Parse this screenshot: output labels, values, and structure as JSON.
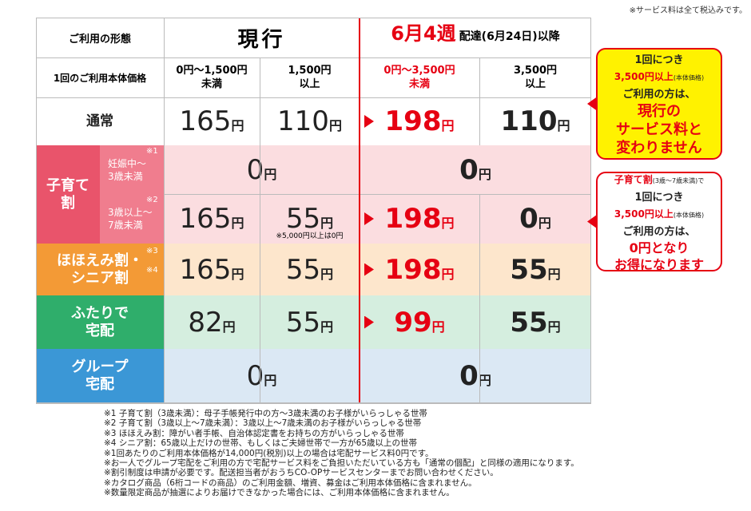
{
  "note": "※サービス料は全て税込みです。",
  "header": {
    "type_label": "ご利用の形態",
    "current": "現行",
    "new_week": "6月4週",
    "new_rest": "配達(6月24日)以降"
  },
  "price_row": {
    "label": "1回のご利用本体価格",
    "cols": [
      [
        "0円～1,500円",
        "未満"
      ],
      [
        "1,500円",
        "以上"
      ],
      [
        "0円～3,500円",
        "未満"
      ],
      [
        "3,500円",
        "以上"
      ]
    ]
  },
  "yen": "円",
  "rows": [
    {
      "label": [
        "通常"
      ],
      "cells": [
        165,
        110,
        198,
        110
      ]
    },
    {
      "label": [
        "子育て",
        "割"
      ],
      "sub": [
        {
          "label": [
            "妊娠中～",
            "3歳未満"
          ],
          "ref": "※1",
          "cells": [
            0,
            0
          ]
        },
        {
          "label": [
            "3歳以上～",
            "7歳未満"
          ],
          "ref": "※2",
          "cells": [
            165,
            55,
            198,
            0
          ],
          "note": "※5,000円以上は0円"
        }
      ]
    },
    {
      "label": [
        "ほほえみ割・",
        "シニア割"
      ],
      "refs": [
        "※3",
        "※4"
      ],
      "cells": [
        165,
        55,
        198,
        55
      ]
    },
    {
      "label": [
        "ふたりで",
        "宅配"
      ],
      "cells": [
        82,
        55,
        99,
        55
      ]
    },
    {
      "label": [
        "グループ",
        "宅配"
      ],
      "cells": [
        0,
        0
      ]
    }
  ],
  "callouts": [
    {
      "lines": [
        [
          "1回につき"
        ],
        [
          "3,500円以上",
          "(本体価格)"
        ],
        [
          "ご利用の方は、"
        ],
        [
          "現行の"
        ],
        [
          "サービス料と"
        ],
        [
          "変わりません"
        ]
      ]
    },
    {
      "lines": [
        [
          "子育て割",
          "(3歳～7歳未満)で"
        ],
        [
          "1回につき"
        ],
        [
          "3,500円以上",
          "(本体価格)"
        ],
        [
          "ご利用の方は、"
        ],
        [
          "0円となり"
        ],
        [
          "お得になります"
        ]
      ]
    }
  ],
  "footnotes": [
    "※1 子育て割（3歳未満）：母子手帳発行中の方～3歳未満のお子様がいらっしゃる世帯",
    "※2 子育て割（3歳以上～7歳未満）：3歳以上～7歳未満のお子様がいらっしゃる世帯",
    "※3 ほほえみ割：障がい者手帳、自治体認定書をお持ちの方がいらっしゃる世帯",
    "※4 シニア割：65歳以上だけの世帯、もしくはご夫婦世帯で一方が65歳以上の世帯",
    "※1回あたりのご利用本体価格が14,000円(税別)以上の場合は宅配サービス料0円です。",
    "※お一人でグループ宅配をご利用の方で宅配サービス料をご負担いただいている方も「通常の個配」と同様の適用になります。",
    "※割引制度は申請が必要です。配送担当者がおうちCO-OPサービスセンターまでお問い合わせください。",
    "※カタログ商品（6桁コードの商品）のご利用金額、増資、募金はご利用本体価格に含まれません。",
    "※数量限定商品が抽選によりお届けできなかった場合には、ご利用本体価格に含まれません。"
  ]
}
